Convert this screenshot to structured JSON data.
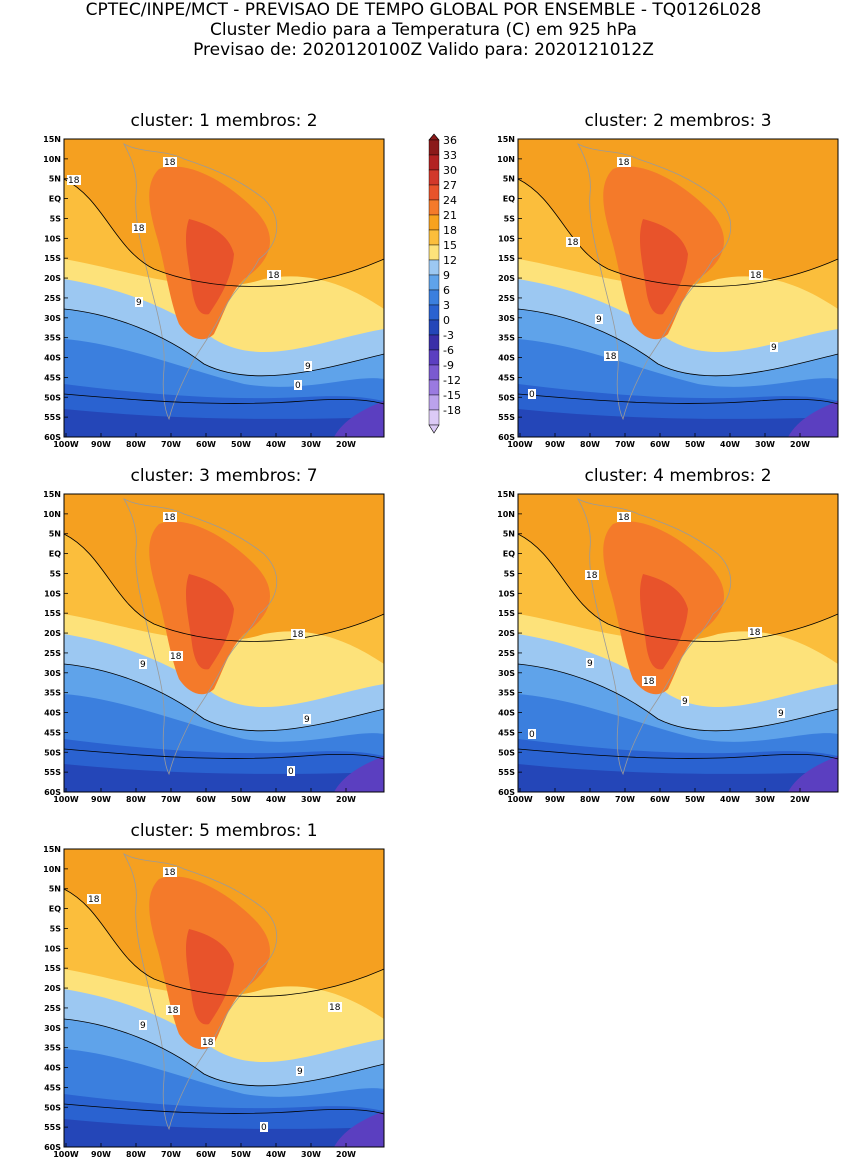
{
  "header": {
    "line1": "CPTEC/INPE/MCT - PREVISAO DE TEMPO GLOBAL POR ENSEMBLE - TQ0126L028",
    "line2": "Cluster Medio para a Temperatura (C) em 925 hPa",
    "line3": "Previsao de: 2020120100Z   Valido para: 2020121012Z"
  },
  "axes": {
    "lat_labels": [
      "15N",
      "10N",
      "5N",
      "EQ",
      "5S",
      "10S",
      "15S",
      "20S",
      "25S",
      "30S",
      "35S",
      "40S",
      "45S",
      "50S",
      "55S",
      "60S"
    ],
    "lon_labels": [
      "100W",
      "90W",
      "80W",
      "70W",
      "60W",
      "50W",
      "40W",
      "30W",
      "20W"
    ]
  },
  "colorbar": {
    "labels": [
      "36",
      "33",
      "30",
      "27",
      "24",
      "21",
      "18",
      "15",
      "12",
      "9",
      "6",
      "3",
      "0",
      "-3",
      "-6",
      "-9",
      "-12",
      "-15",
      "-18"
    ],
    "colors": [
      "#8b1a1a",
      "#b22222",
      "#d2382a",
      "#e8532b",
      "#f47a2a",
      "#f7a21e",
      "#fbbe3c",
      "#fde27a",
      "#9cc8f2",
      "#5fa3ea",
      "#3b7fde",
      "#2a62d0",
      "#2446b8",
      "#3a2fa8",
      "#5b3fc0",
      "#7a5ad0",
      "#9a7ae0",
      "#bba2ec",
      "#dccaf6"
    ]
  },
  "panels": [
    {
      "title": "cluster: 1   membros: 2",
      "labels": [
        "18",
        "18",
        "18",
        "18",
        "9",
        "9",
        "0"
      ]
    },
    {
      "title": "cluster: 2   membros: 3",
      "labels": [
        "18",
        "18",
        "18",
        "18",
        "9",
        "9",
        "0"
      ]
    },
    {
      "title": "cluster: 3   membros: 7",
      "labels": [
        "18",
        "18",
        "18",
        "9",
        "9",
        "0"
      ]
    },
    {
      "title": "cluster: 4   membros: 2",
      "labels": [
        "18",
        "18",
        "18",
        "18",
        "9",
        "9",
        "9",
        "0"
      ]
    },
    {
      "title": "cluster: 5   membros: 1",
      "labels": [
        "18",
        "18",
        "18",
        "18",
        "18",
        "9",
        "9",
        "0"
      ]
    }
  ]
}
